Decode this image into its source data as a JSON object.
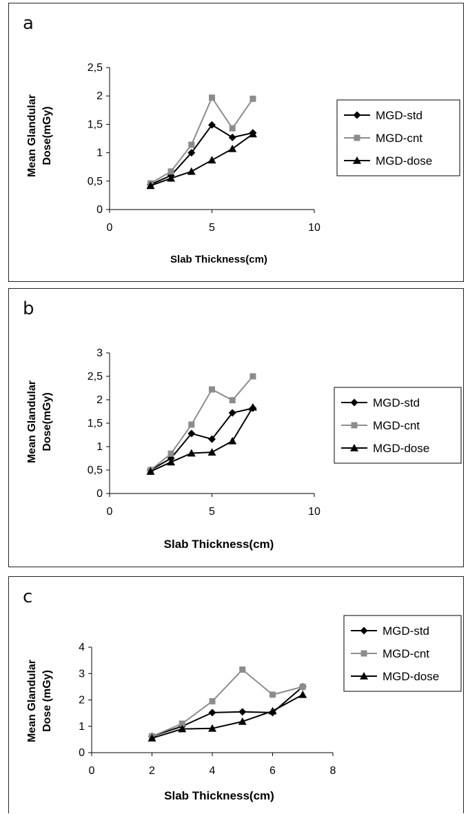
{
  "chart_data": [
    {
      "type": "line",
      "panel_label": "a",
      "xlabel": "Slab Thickness(cm)",
      "ylabel": "Mean Glandular Dose(mGy)",
      "ylabel_lines": [
        "Mean Glandular",
        "Dose(mGy)"
      ],
      "xlim": [
        0,
        10
      ],
      "ylim": [
        0,
        2.5
      ],
      "x_ticks": [
        "0",
        "5",
        "10"
      ],
      "y_ticks": [
        "0",
        "0,5",
        "1",
        "1,5",
        "2",
        "2,5"
      ],
      "legend_position": "right",
      "x": [
        2,
        3,
        4,
        5,
        6,
        7
      ],
      "series": [
        {
          "name": "MGD-std",
          "marker": "diamond",
          "color": "#000000",
          "values": [
            0.44,
            0.6,
            1.0,
            1.49,
            1.27,
            1.35
          ]
        },
        {
          "name": "MGD-cnt",
          "marker": "square",
          "color": "#8c8c8c",
          "values": [
            0.46,
            0.67,
            1.14,
            1.97,
            1.43,
            1.95
          ]
        },
        {
          "name": "MGD-dose",
          "marker": "triangle",
          "color": "#000000",
          "values": [
            0.42,
            0.55,
            0.67,
            0.87,
            1.07,
            1.33
          ]
        }
      ]
    },
    {
      "type": "line",
      "panel_label": "b",
      "xlabel": "Slab Thickness(cm)",
      "ylabel": "Mean Glandular Dose(mGy)",
      "ylabel_lines": [
        "Mean Glandular",
        "Dose(mGy)"
      ],
      "xlim": [
        0,
        10
      ],
      "ylim": [
        0,
        3
      ],
      "x_ticks": [
        "0",
        "5",
        "10"
      ],
      "y_ticks": [
        "0",
        "0,5",
        "1",
        "1,5",
        "2",
        "2,5",
        "3"
      ],
      "legend_position": "right",
      "x": [
        2,
        3,
        4,
        5,
        6,
        7
      ],
      "series": [
        {
          "name": "MGD-std",
          "marker": "diamond",
          "color": "#000000",
          "values": [
            0.5,
            0.75,
            1.28,
            1.16,
            1.72,
            1.82
          ]
        },
        {
          "name": "MGD-cnt",
          "marker": "square",
          "color": "#8c8c8c",
          "values": [
            0.5,
            0.85,
            1.47,
            2.22,
            1.99,
            2.5
          ]
        },
        {
          "name": "MGD-dose",
          "marker": "triangle",
          "color": "#000000",
          "values": [
            0.47,
            0.67,
            0.86,
            0.88,
            1.12,
            1.84
          ]
        }
      ]
    },
    {
      "type": "line",
      "panel_label": "c",
      "xlabel": "Slab Thickness(cm)",
      "ylabel": "Mean Glandular Dose (mGy)",
      "ylabel_lines": [
        "Mean Glandular",
        "Dose (mGy)"
      ],
      "xlim": [
        0,
        8
      ],
      "ylim": [
        0,
        4
      ],
      "x_ticks": [
        "0",
        "2",
        "4",
        "6",
        "8"
      ],
      "y_ticks": [
        "0",
        "1",
        "2",
        "3",
        "4"
      ],
      "legend_position": "right",
      "x": [
        2,
        3,
        4,
        5,
        6,
        7
      ],
      "series": [
        {
          "name": "MGD-std",
          "marker": "diamond",
          "color": "#000000",
          "values": [
            0.62,
            1.0,
            1.52,
            1.55,
            1.52,
            2.5
          ]
        },
        {
          "name": "MGD-cnt",
          "marker": "square",
          "color": "#8c8c8c",
          "values": [
            0.62,
            1.1,
            1.95,
            3.15,
            2.2,
            2.5
          ]
        },
        {
          "name": "MGD-dose",
          "marker": "triangle",
          "color": "#000000",
          "values": [
            0.55,
            0.9,
            0.92,
            1.18,
            1.58,
            2.2
          ]
        }
      ]
    }
  ]
}
